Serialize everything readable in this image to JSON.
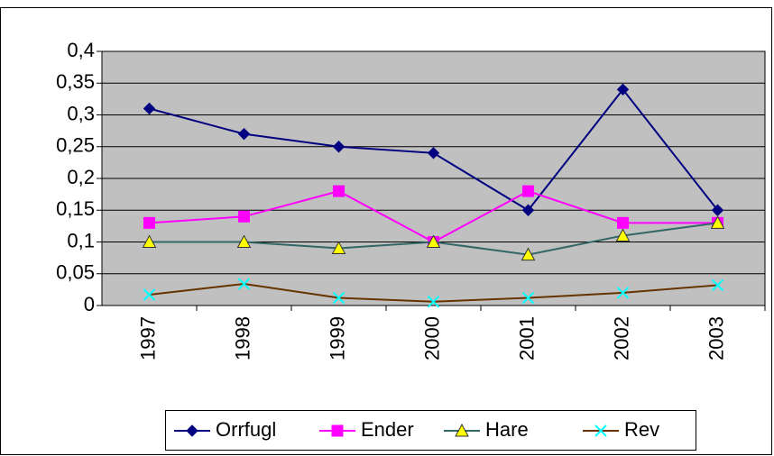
{
  "chart_data": {
    "type": "line",
    "categories": [
      "1997",
      "1998",
      "1999",
      "2000",
      "2001",
      "2002",
      "2003"
    ],
    "series": [
      {
        "name": "Orrfugl",
        "color": "#000080",
        "marker": "diamond",
        "marker_color": "#000080",
        "values": [
          0.31,
          0.27,
          0.25,
          0.24,
          0.15,
          0.34,
          0.15
        ]
      },
      {
        "name": "Ender",
        "color": "#ff00ff",
        "marker": "square",
        "marker_color": "#ff00ff",
        "values": [
          0.13,
          0.14,
          0.18,
          0.1,
          0.18,
          0.13,
          0.13
        ]
      },
      {
        "name": "Hare",
        "color": "#336666",
        "marker": "triangle",
        "marker_color": "#ffff00",
        "values": [
          0.1,
          0.1,
          0.09,
          0.1,
          0.08,
          0.11,
          0.13
        ]
      },
      {
        "name": "Rev",
        "color": "#663300",
        "marker": "x",
        "marker_color": "#00ffff",
        "values": [
          0.017,
          0.034,
          0.012,
          0.006,
          0.012,
          0.02,
          0.032
        ]
      }
    ],
    "ylim": [
      0,
      0.4
    ],
    "yticks": [
      0,
      {
        "value": 0.05,
        "label": "0,05"
      },
      {
        "value": 0.1,
        "label": "0,1"
      },
      {
        "value": 0.15,
        "label": "0,15"
      },
      {
        "value": 0.2,
        "label": "0,2"
      },
      {
        "value": 0.25,
        "label": "0,25"
      },
      {
        "value": 0.3,
        "label": "0,3"
      },
      {
        "value": 0.35,
        "label": "0,35"
      },
      {
        "value": 0.4,
        "label": "0,4"
      }
    ],
    "grid": true,
    "plot_background": "#c0c0c0",
    "legend": "bottom"
  }
}
